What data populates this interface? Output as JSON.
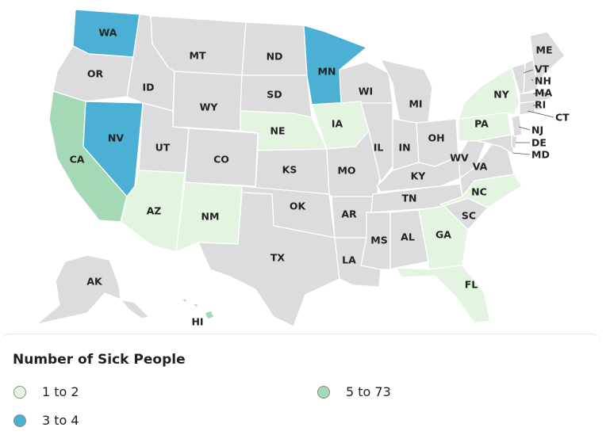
{
  "colors": {
    "none": "#dcdcde",
    "low": "#e3f5e1",
    "mid": "#4bb0d3",
    "high": "#a5d9b5",
    "border": "#ffffff",
    "text": "#222222"
  },
  "states": [
    {
      "abbr": "WA",
      "bucket": "mid"
    },
    {
      "abbr": "OR",
      "bucket": "none"
    },
    {
      "abbr": "CA",
      "bucket": "high"
    },
    {
      "abbr": "NV",
      "bucket": "mid"
    },
    {
      "abbr": "ID",
      "bucket": "none"
    },
    {
      "abbr": "MT",
      "bucket": "none"
    },
    {
      "abbr": "WY",
      "bucket": "none"
    },
    {
      "abbr": "UT",
      "bucket": "none"
    },
    {
      "abbr": "CO",
      "bucket": "none"
    },
    {
      "abbr": "AZ",
      "bucket": "low"
    },
    {
      "abbr": "NM",
      "bucket": "low"
    },
    {
      "abbr": "ND",
      "bucket": "none"
    },
    {
      "abbr": "SD",
      "bucket": "none"
    },
    {
      "abbr": "NE",
      "bucket": "low"
    },
    {
      "abbr": "KS",
      "bucket": "none"
    },
    {
      "abbr": "OK",
      "bucket": "none"
    },
    {
      "abbr": "TX",
      "bucket": "none"
    },
    {
      "abbr": "MN",
      "bucket": "mid"
    },
    {
      "abbr": "IA",
      "bucket": "low"
    },
    {
      "abbr": "MO",
      "bucket": "none"
    },
    {
      "abbr": "AR",
      "bucket": "none"
    },
    {
      "abbr": "LA",
      "bucket": "none"
    },
    {
      "abbr": "WI",
      "bucket": "none"
    },
    {
      "abbr": "IL",
      "bucket": "none"
    },
    {
      "abbr": "MI",
      "bucket": "none"
    },
    {
      "abbr": "IN",
      "bucket": "none"
    },
    {
      "abbr": "OH",
      "bucket": "none"
    },
    {
      "abbr": "KY",
      "bucket": "none"
    },
    {
      "abbr": "TN",
      "bucket": "none"
    },
    {
      "abbr": "MS",
      "bucket": "none"
    },
    {
      "abbr": "AL",
      "bucket": "none"
    },
    {
      "abbr": "GA",
      "bucket": "low"
    },
    {
      "abbr": "FL",
      "bucket": "low"
    },
    {
      "abbr": "SC",
      "bucket": "none"
    },
    {
      "abbr": "NC",
      "bucket": "low"
    },
    {
      "abbr": "VA",
      "bucket": "none"
    },
    {
      "abbr": "WV",
      "bucket": "none"
    },
    {
      "abbr": "PA",
      "bucket": "low"
    },
    {
      "abbr": "NY",
      "bucket": "low"
    },
    {
      "abbr": "ME",
      "bucket": "none"
    },
    {
      "abbr": "VT",
      "bucket": "none"
    },
    {
      "abbr": "NH",
      "bucket": "none"
    },
    {
      "abbr": "MA",
      "bucket": "none"
    },
    {
      "abbr": "RI",
      "bucket": "none"
    },
    {
      "abbr": "CT",
      "bucket": "none"
    },
    {
      "abbr": "NJ",
      "bucket": "none"
    },
    {
      "abbr": "DE",
      "bucket": "none"
    },
    {
      "abbr": "MD",
      "bucket": "none"
    },
    {
      "abbr": "AK",
      "bucket": "none"
    },
    {
      "abbr": "HI",
      "bucket": "high"
    }
  ],
  "legend": {
    "title": "Number of Sick People",
    "items": [
      {
        "label": "1 to 2",
        "bucket": "low"
      },
      {
        "label": "5 to 73",
        "bucket": "high"
      },
      {
        "label": "3 to 4",
        "bucket": "mid"
      }
    ]
  }
}
